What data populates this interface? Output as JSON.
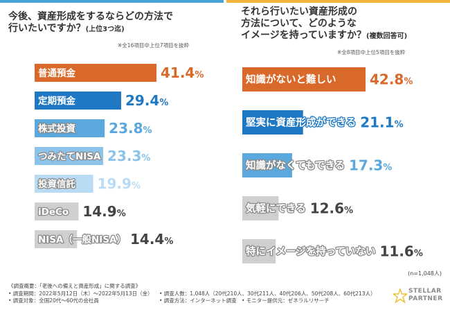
{
  "chart_data": [
    {
      "type": "bar",
      "title": "今後、資産形成をするならどの方法で行いたいですか？",
      "title_line1": "今後、資産形成をするならどの方法で",
      "title_line2": "行いたいですか？",
      "subtitle": "(上位3つ迄)",
      "note": "※全16項目中上位7項目を抜粋",
      "categories": [
        "普通預金",
        "定期預金",
        "株式投資",
        "つみたてNISA",
        "投資信託",
        "iDeCo",
        "NISA（一般NISA）"
      ],
      "values": [
        41.4,
        29.4,
        23.8,
        23.3,
        19.9,
        14.9,
        14.4
      ],
      "value_labels": [
        "41.4%",
        "29.4%",
        "23.8%",
        "23.3%",
        "19.9%",
        "14.9%",
        "14.4%"
      ],
      "colors": [
        "#d9692a",
        "#1f78c4",
        "#5aa8dd",
        "#8cc3ea",
        "#b9dbf3",
        "#cfcfcf",
        "#cfcfcf"
      ],
      "xlim": [
        0,
        41.4
      ]
    },
    {
      "type": "bar",
      "title": "それら行いたい資産形成の方法について、どのようなイメージを持っていますか？",
      "title_line1": "それら行いたい資産形成の",
      "title_line2": "方法について、どのような",
      "title_line3": "イメージを持っていますか？",
      "subtitle": "(複数回答可)",
      "note": "※全8項目中上位5項目を抜粋",
      "categories": [
        "知識がないと難しい",
        "堅実に資産形成ができる",
        "知識がなくてもできる",
        "気軽にできる",
        "特にイメージを持っていない"
      ],
      "values": [
        42.8,
        21.1,
        17.3,
        12.6,
        11.6
      ],
      "value_labels": [
        "42.8%",
        "21.1%",
        "17.3%",
        "12.6%",
        "11.6%"
      ],
      "colors": [
        "#d9692a",
        "#1f78c4",
        "#5aa8dd",
        "#cfcfcf",
        "#cfcfcf"
      ],
      "xlim": [
        0,
        42.8
      ],
      "n_label": "(n=1,048人)"
    }
  ],
  "footer": {
    "line1": "《調査概要：「老後への備えと資産形成」に関する調査》",
    "line2": "• 調査期間：2022年5月12日（木）～2022年5月13日（金）",
    "line3": "• 調査対象：全国20代～60代の会社員",
    "col1": "• 調査人数：1,048人（20代210人、30代211人、40代206人、50代208人、60代213人）",
    "col2a": "• 調査方法：インターネット調査",
    "col2b": "• モニター提供元：ゼネラルリサーチ"
  },
  "logo": {
    "line1": "STELLAR",
    "line2": "PARTNER"
  }
}
